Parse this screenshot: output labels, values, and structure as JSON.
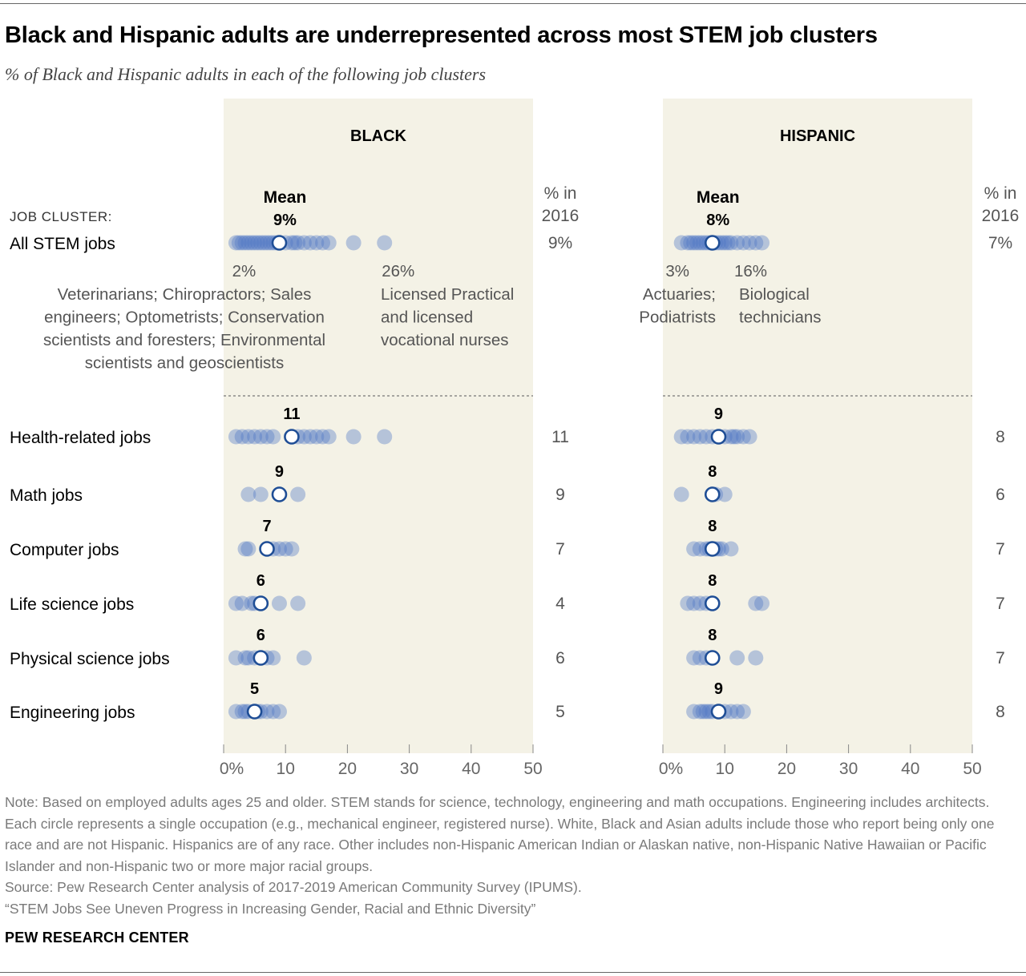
{
  "title": "Black and Hispanic adults are underrepresented across most STEM job clusters",
  "subtitle": "% of Black and Hispanic adults in each of the following job clusters",
  "header": {
    "job_cluster_label": "JOB CLUSTER:",
    "mean_label": "Mean",
    "pct2016_line1": "% in",
    "pct2016_line2": "2016"
  },
  "colors": {
    "panel_bg": "#f4f2e6",
    "dot": "#4f76c4",
    "mean_stroke": "#1f4e96",
    "axis_text": "#666666",
    "annotation_text": "#555555",
    "note_text": "#7a7a7a"
  },
  "annotations": {
    "black": {
      "low_value": "2%",
      "high_value": "26%",
      "low_lines": [
        "Veterinarians; Chiropractors; Sales",
        "engineers; Optometrists; Conservation",
        "scientists and foresters; Environmental",
        "scientists and geoscientists"
      ],
      "high_lines": [
        "Licensed Practical",
        "and licensed",
        "vocational nurses"
      ]
    },
    "hispanic": {
      "low_value": "3%",
      "high_value": "16%",
      "low_lines": [
        "Actuaries;",
        "Podiatrists"
      ],
      "high_lines": [
        "Biological",
        "technicians"
      ]
    }
  },
  "notes": {
    "note": "Note: Based on employed adults ages 25 and older. STEM stands for science, technology, engineering and math occupations. Engineering includes architects. Each circle represents a single occupation (e.g., mechanical engineer, registered nurse). White, Black and Asian adults include those who report being only one race and are not Hispanic. Hispanics are of any race. Other includes non-Hispanic American Indian or Alaskan native, non-Hispanic Native Hawaiian or Pacific Islander and non-Hispanic two or more major racial groups.",
    "source": "Source: Pew Research Center analysis of 2017-2019 American Community Survey (IPUMS).",
    "report": "“STEM Jobs See Uneven Progress in Increasing Gender, Racial and Ethnic Diversity”",
    "brand": "PEW RESEARCH CENTER"
  },
  "chart_data": {
    "type": "scatter",
    "description_of_marks": "dot strip plot; each dot is one occupation, white circle is the mean",
    "xlim": [
      0,
      50
    ],
    "x_ticks": [
      0,
      10,
      20,
      30,
      40,
      50
    ],
    "x_tick_labels": [
      "0%",
      "10",
      "20",
      "30",
      "40",
      "50"
    ],
    "panels": [
      {
        "name": "BLACK",
        "rows": [
          {
            "label": "All STEM jobs",
            "mean": 9,
            "mean_label": "9%",
            "pct_2016": "9%",
            "values": [
              2,
              2.5,
              3,
              3.5,
              4,
              4.5,
              5,
              5.5,
              6,
              6.5,
              7,
              7.5,
              8,
              8.5,
              10,
              11,
              11.5,
              12,
              13,
              14,
              15,
              16,
              17,
              21,
              26
            ]
          },
          {
            "label": "Health-related jobs",
            "mean": 11,
            "mean_label": "11",
            "pct_2016": "11",
            "values": [
              2,
              3,
              4,
              5,
              6,
              7,
              8,
              12,
              13,
              14,
              15,
              16,
              17,
              21,
              26
            ]
          },
          {
            "label": "Math jobs",
            "mean": 9,
            "mean_label": "9",
            "pct_2016": "9",
            "values": [
              4,
              6,
              12
            ]
          },
          {
            "label": "Computer jobs",
            "mean": 7,
            "mean_label": "7",
            "pct_2016": "7",
            "values": [
              3.5,
              4,
              8,
              9,
              10,
              11
            ]
          },
          {
            "label": "Life science jobs",
            "mean": 6,
            "mean_label": "6",
            "pct_2016": "4",
            "values": [
              2,
              3,
              4.5,
              5,
              9,
              12
            ]
          },
          {
            "label": "Physical science jobs",
            "mean": 6,
            "mean_label": "6",
            "pct_2016": "6",
            "values": [
              2,
              3.5,
              4,
              5,
              7,
              8,
              13
            ]
          },
          {
            "label": "Engineering jobs",
            "mean": 5,
            "mean_label": "5",
            "pct_2016": "5",
            "values": [
              2,
              3,
              3.5,
              4,
              5,
              5.5,
              6,
              7,
              8,
              9
            ]
          }
        ]
      },
      {
        "name": "HISPANIC",
        "rows": [
          {
            "label": "All STEM jobs",
            "mean": 8,
            "mean_label": "8%",
            "pct_2016": "7%",
            "values": [
              3,
              4,
              4.5,
              5,
              5.5,
              6,
              6.5,
              7,
              7.5,
              8.5,
              9,
              9.5,
              10,
              10.5,
              11,
              12,
              13,
              14,
              15,
              16
            ]
          },
          {
            "label": "Health-related jobs",
            "mean": 9,
            "mean_label": "9",
            "pct_2016": "8",
            "values": [
              3,
              4,
              5,
              6,
              7,
              8,
              10,
              11,
              11.5,
              12,
              13,
              14
            ]
          },
          {
            "label": "Math jobs",
            "mean": 8,
            "mean_label": "8",
            "pct_2016": "6",
            "values": [
              3,
              8.5,
              10
            ]
          },
          {
            "label": "Computer jobs",
            "mean": 8,
            "mean_label": "8",
            "pct_2016": "7",
            "values": [
              5,
              6,
              7,
              7.5,
              8.5,
              9,
              9.5,
              11
            ]
          },
          {
            "label": "Life science jobs",
            "mean": 8,
            "mean_label": "8",
            "pct_2016": "7",
            "values": [
              4,
              5,
              6,
              7,
              15,
              16
            ]
          },
          {
            "label": "Physical science jobs",
            "mean": 8,
            "mean_label": "8",
            "pct_2016": "7",
            "values": [
              5,
              6,
              7,
              12,
              15
            ]
          },
          {
            "label": "Engineering jobs",
            "mean": 9,
            "mean_label": "9",
            "pct_2016": "8",
            "values": [
              5,
              6,
              6.5,
              7,
              7.5,
              8,
              10,
              11,
              12,
              13
            ]
          }
        ]
      }
    ]
  }
}
